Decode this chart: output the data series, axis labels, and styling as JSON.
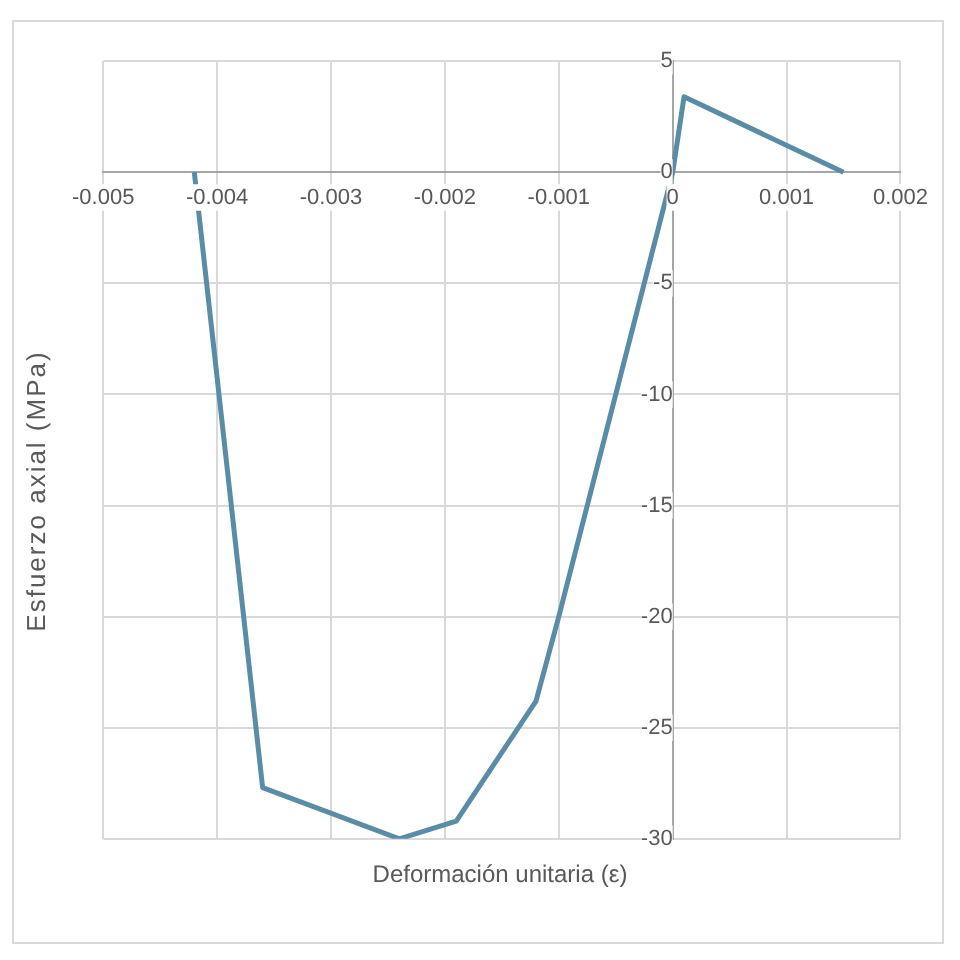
{
  "chart_data": {
    "type": "line",
    "xlabel": "Deformación unitaria (ε)",
    "ylabel": "Esfuerzo axial (MPa)",
    "x": [
      -0.0042,
      -0.0036,
      -0.0024,
      -0.0019,
      -0.0012,
      -0.001,
      0,
      0.0001,
      0.0015
    ],
    "series": [
      {
        "color": "#5a8ca5",
        "values": [
          0,
          -27.7,
          -30,
          -29.2,
          -23.8,
          -20,
          0,
          3.4,
          0
        ]
      }
    ],
    "xlim": [
      -0.005,
      0.002
    ],
    "xticks": [
      -0.005,
      -0.004,
      -0.003,
      -0.002,
      -0.001,
      0,
      0.001,
      0.002
    ],
    "ylim": [
      -30,
      5
    ],
    "yticks": [
      -30,
      -25,
      -20,
      -15,
      -10,
      -5,
      0,
      5
    ],
    "grid": true,
    "legend": false,
    "marker": "none",
    "line_style": "solid"
  }
}
